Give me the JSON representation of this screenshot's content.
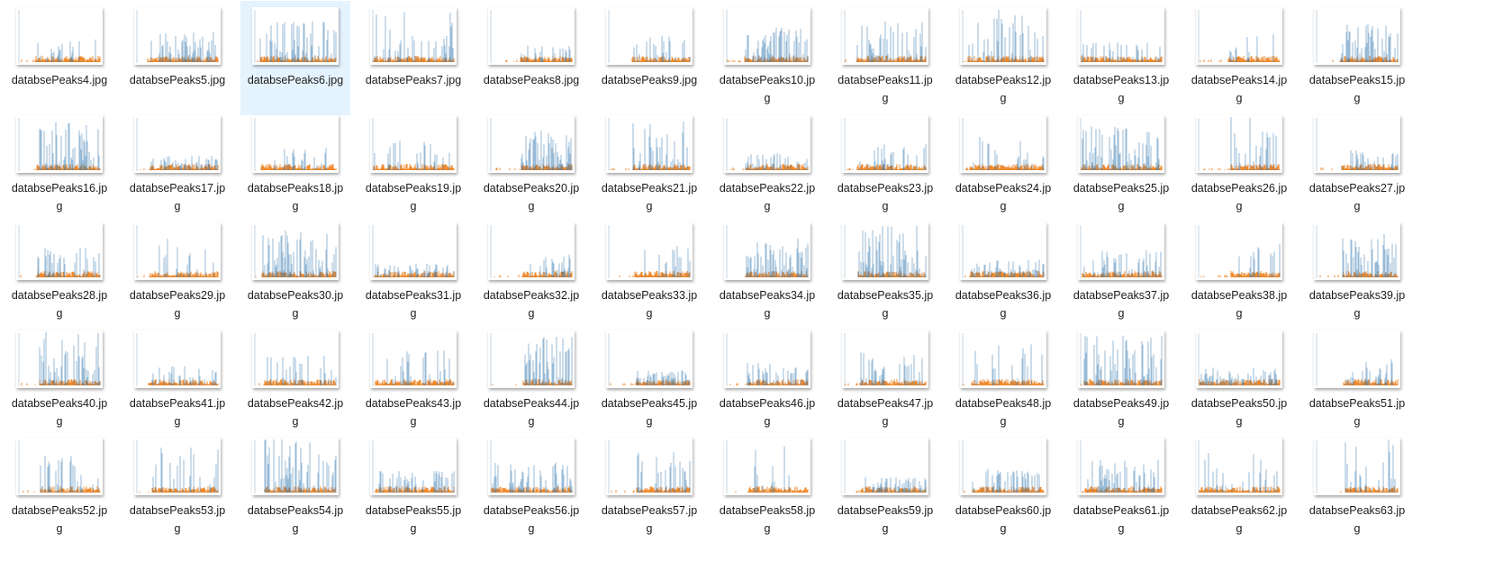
{
  "colors": {
    "blue": "#3a7bb1",
    "orange": "#ef8a2e",
    "selection": "#e5f3ff"
  },
  "files": [
    {
      "name": "databsePeaks4.jpg",
      "selected": false
    },
    {
      "name": "databsePeaks5.jpg",
      "selected": false
    },
    {
      "name": "databsePeaks6.jpg",
      "selected": true
    },
    {
      "name": "databsePeaks7.jpg",
      "selected": false
    },
    {
      "name": "databsePeaks8.jpg",
      "selected": false
    },
    {
      "name": "databsePeaks9.jpg",
      "selected": false
    },
    {
      "name": "databsePeaks10.jpg",
      "selected": false
    },
    {
      "name": "databsePeaks11.jpg",
      "selected": false
    },
    {
      "name": "databsePeaks12.jpg",
      "selected": false
    },
    {
      "name": "databsePeaks13.jpg",
      "selected": false
    },
    {
      "name": "databsePeaks14.jpg",
      "selected": false
    },
    {
      "name": "databsePeaks15.jpg",
      "selected": false
    },
    {
      "name": "databsePeaks16.jpg",
      "selected": false
    },
    {
      "name": "databsePeaks17.jpg",
      "selected": false
    },
    {
      "name": "databsePeaks18.jpg",
      "selected": false
    },
    {
      "name": "databsePeaks19.jpg",
      "selected": false
    },
    {
      "name": "databsePeaks20.jpg",
      "selected": false
    },
    {
      "name": "databsePeaks21.jpg",
      "selected": false
    },
    {
      "name": "databsePeaks22.jpg",
      "selected": false
    },
    {
      "name": "databsePeaks23.jpg",
      "selected": false
    },
    {
      "name": "databsePeaks24.jpg",
      "selected": false
    },
    {
      "name": "databsePeaks25.jpg",
      "selected": false
    },
    {
      "name": "databsePeaks26.jpg",
      "selected": false
    },
    {
      "name": "databsePeaks27.jpg",
      "selected": false
    },
    {
      "name": "databsePeaks28.jpg",
      "selected": false
    },
    {
      "name": "databsePeaks29.jpg",
      "selected": false
    },
    {
      "name": "databsePeaks30.jpg",
      "selected": false
    },
    {
      "name": "databsePeaks31.jpg",
      "selected": false
    },
    {
      "name": "databsePeaks32.jpg",
      "selected": false
    },
    {
      "name": "databsePeaks33.jpg",
      "selected": false
    },
    {
      "name": "databsePeaks34.jpg",
      "selected": false
    },
    {
      "name": "databsePeaks35.jpg",
      "selected": false
    },
    {
      "name": "databsePeaks36.jpg",
      "selected": false
    },
    {
      "name": "databsePeaks37.jpg",
      "selected": false
    },
    {
      "name": "databsePeaks38.jpg",
      "selected": false
    },
    {
      "name": "databsePeaks39.jpg",
      "selected": false
    },
    {
      "name": "databsePeaks40.jpg",
      "selected": false
    },
    {
      "name": "databsePeaks41.jpg",
      "selected": false
    },
    {
      "name": "databsePeaks42.jpg",
      "selected": false
    },
    {
      "name": "databsePeaks43.jpg",
      "selected": false
    },
    {
      "name": "databsePeaks44.jpg",
      "selected": false
    },
    {
      "name": "databsePeaks45.jpg",
      "selected": false
    },
    {
      "name": "databsePeaks46.jpg",
      "selected": false
    },
    {
      "name": "databsePeaks47.jpg",
      "selected": false
    },
    {
      "name": "databsePeaks48.jpg",
      "selected": false
    },
    {
      "name": "databsePeaks49.jpg",
      "selected": false
    },
    {
      "name": "databsePeaks50.jpg",
      "selected": false
    },
    {
      "name": "databsePeaks51.jpg",
      "selected": false
    },
    {
      "name": "databsePeaks52.jpg",
      "selected": false
    },
    {
      "name": "databsePeaks53.jpg",
      "selected": false
    },
    {
      "name": "databsePeaks54.jpg",
      "selected": false
    },
    {
      "name": "databsePeaks55.jpg",
      "selected": false
    },
    {
      "name": "databsePeaks56.jpg",
      "selected": false
    },
    {
      "name": "databsePeaks57.jpg",
      "selected": false
    },
    {
      "name": "databsePeaks58.jpg",
      "selected": false
    },
    {
      "name": "databsePeaks59.jpg",
      "selected": false
    },
    {
      "name": "databsePeaks60.jpg",
      "selected": false
    },
    {
      "name": "databsePeaks61.jpg",
      "selected": false
    },
    {
      "name": "databsePeaks62.jpg",
      "selected": false
    },
    {
      "name": "databsePeaks63.jpg",
      "selected": false
    }
  ]
}
